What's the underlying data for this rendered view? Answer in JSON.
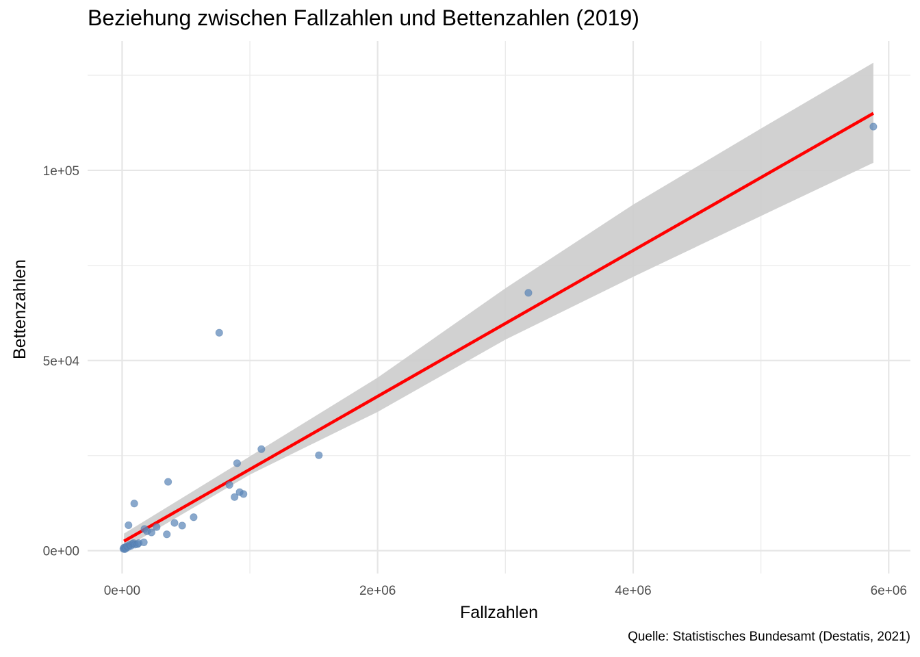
{
  "chart_data": {
    "type": "scatter",
    "title": "Beziehung zwischen Fallzahlen und Bettenzahlen (2019)",
    "xlabel": "Fallzahlen",
    "ylabel": "Bettenzahlen",
    "caption": "Quelle: Statistisches Bundesamt (Destatis, 2021)",
    "xlim": [
      -270000,
      6170000
    ],
    "ylim": [
      -6000,
      134000
    ],
    "x_ticks": [
      0,
      2000000,
      4000000,
      6000000
    ],
    "x_tick_labels": [
      "0e+00",
      "2e+06",
      "4e+06",
      "6e+06"
    ],
    "y_ticks": [
      0,
      50000,
      100000
    ],
    "y_tick_labels": [
      "0e+00",
      "5e+04",
      "1e+05"
    ],
    "grid": true,
    "point_color": "#5b86b8",
    "fit_color": "#ff0000",
    "band_color": "#cccccc",
    "points": [
      {
        "x": 10000,
        "y": 500
      },
      {
        "x": 15000,
        "y": 800
      },
      {
        "x": 20000,
        "y": 400
      },
      {
        "x": 25000,
        "y": 900
      },
      {
        "x": 30000,
        "y": 600
      },
      {
        "x": 40000,
        "y": 1200
      },
      {
        "x": 50000,
        "y": 1000
      },
      {
        "x": 60000,
        "y": 1500
      },
      {
        "x": 70000,
        "y": 1300
      },
      {
        "x": 80000,
        "y": 1800
      },
      {
        "x": 90000,
        "y": 2000
      },
      {
        "x": 100000,
        "y": 1600
      },
      {
        "x": 120000,
        "y": 1700
      },
      {
        "x": 130000,
        "y": 2000
      },
      {
        "x": 50000,
        "y": 6700
      },
      {
        "x": 95000,
        "y": 12400
      },
      {
        "x": 170000,
        "y": 2200
      },
      {
        "x": 175000,
        "y": 5700
      },
      {
        "x": 195000,
        "y": 5100
      },
      {
        "x": 230000,
        "y": 4800
      },
      {
        "x": 270000,
        "y": 6200
      },
      {
        "x": 350000,
        "y": 4300
      },
      {
        "x": 360000,
        "y": 18100
      },
      {
        "x": 410000,
        "y": 7300
      },
      {
        "x": 470000,
        "y": 6600
      },
      {
        "x": 560000,
        "y": 8800
      },
      {
        "x": 760000,
        "y": 57300
      },
      {
        "x": 840000,
        "y": 17300
      },
      {
        "x": 880000,
        "y": 14100
      },
      {
        "x": 900000,
        "y": 23000
      },
      {
        "x": 920000,
        "y": 15400
      },
      {
        "x": 950000,
        "y": 14900
      },
      {
        "x": 1090000,
        "y": 26700
      },
      {
        "x": 1540000,
        "y": 25100
      },
      {
        "x": 3180000,
        "y": 67800
      },
      {
        "x": 5880000,
        "y": 111500
      }
    ],
    "fit": {
      "x0": 15000,
      "x1": 5880000,
      "y0": 2500,
      "y1": 115000
    },
    "ci_upper": [
      [
        15000,
        4500
      ],
      [
        1000000,
        24800
      ],
      [
        2000000,
        45500
      ],
      [
        3000000,
        69000
      ],
      [
        4000000,
        91000
      ],
      [
        5000000,
        111000
      ],
      [
        5880000,
        128300
      ]
    ],
    "ci_lower": [
      [
        15000,
        600
      ],
      [
        1000000,
        20000
      ],
      [
        2000000,
        36500
      ],
      [
        3000000,
        55500
      ],
      [
        4000000,
        72000
      ],
      [
        5000000,
        88000
      ],
      [
        5880000,
        102000
      ]
    ]
  }
}
